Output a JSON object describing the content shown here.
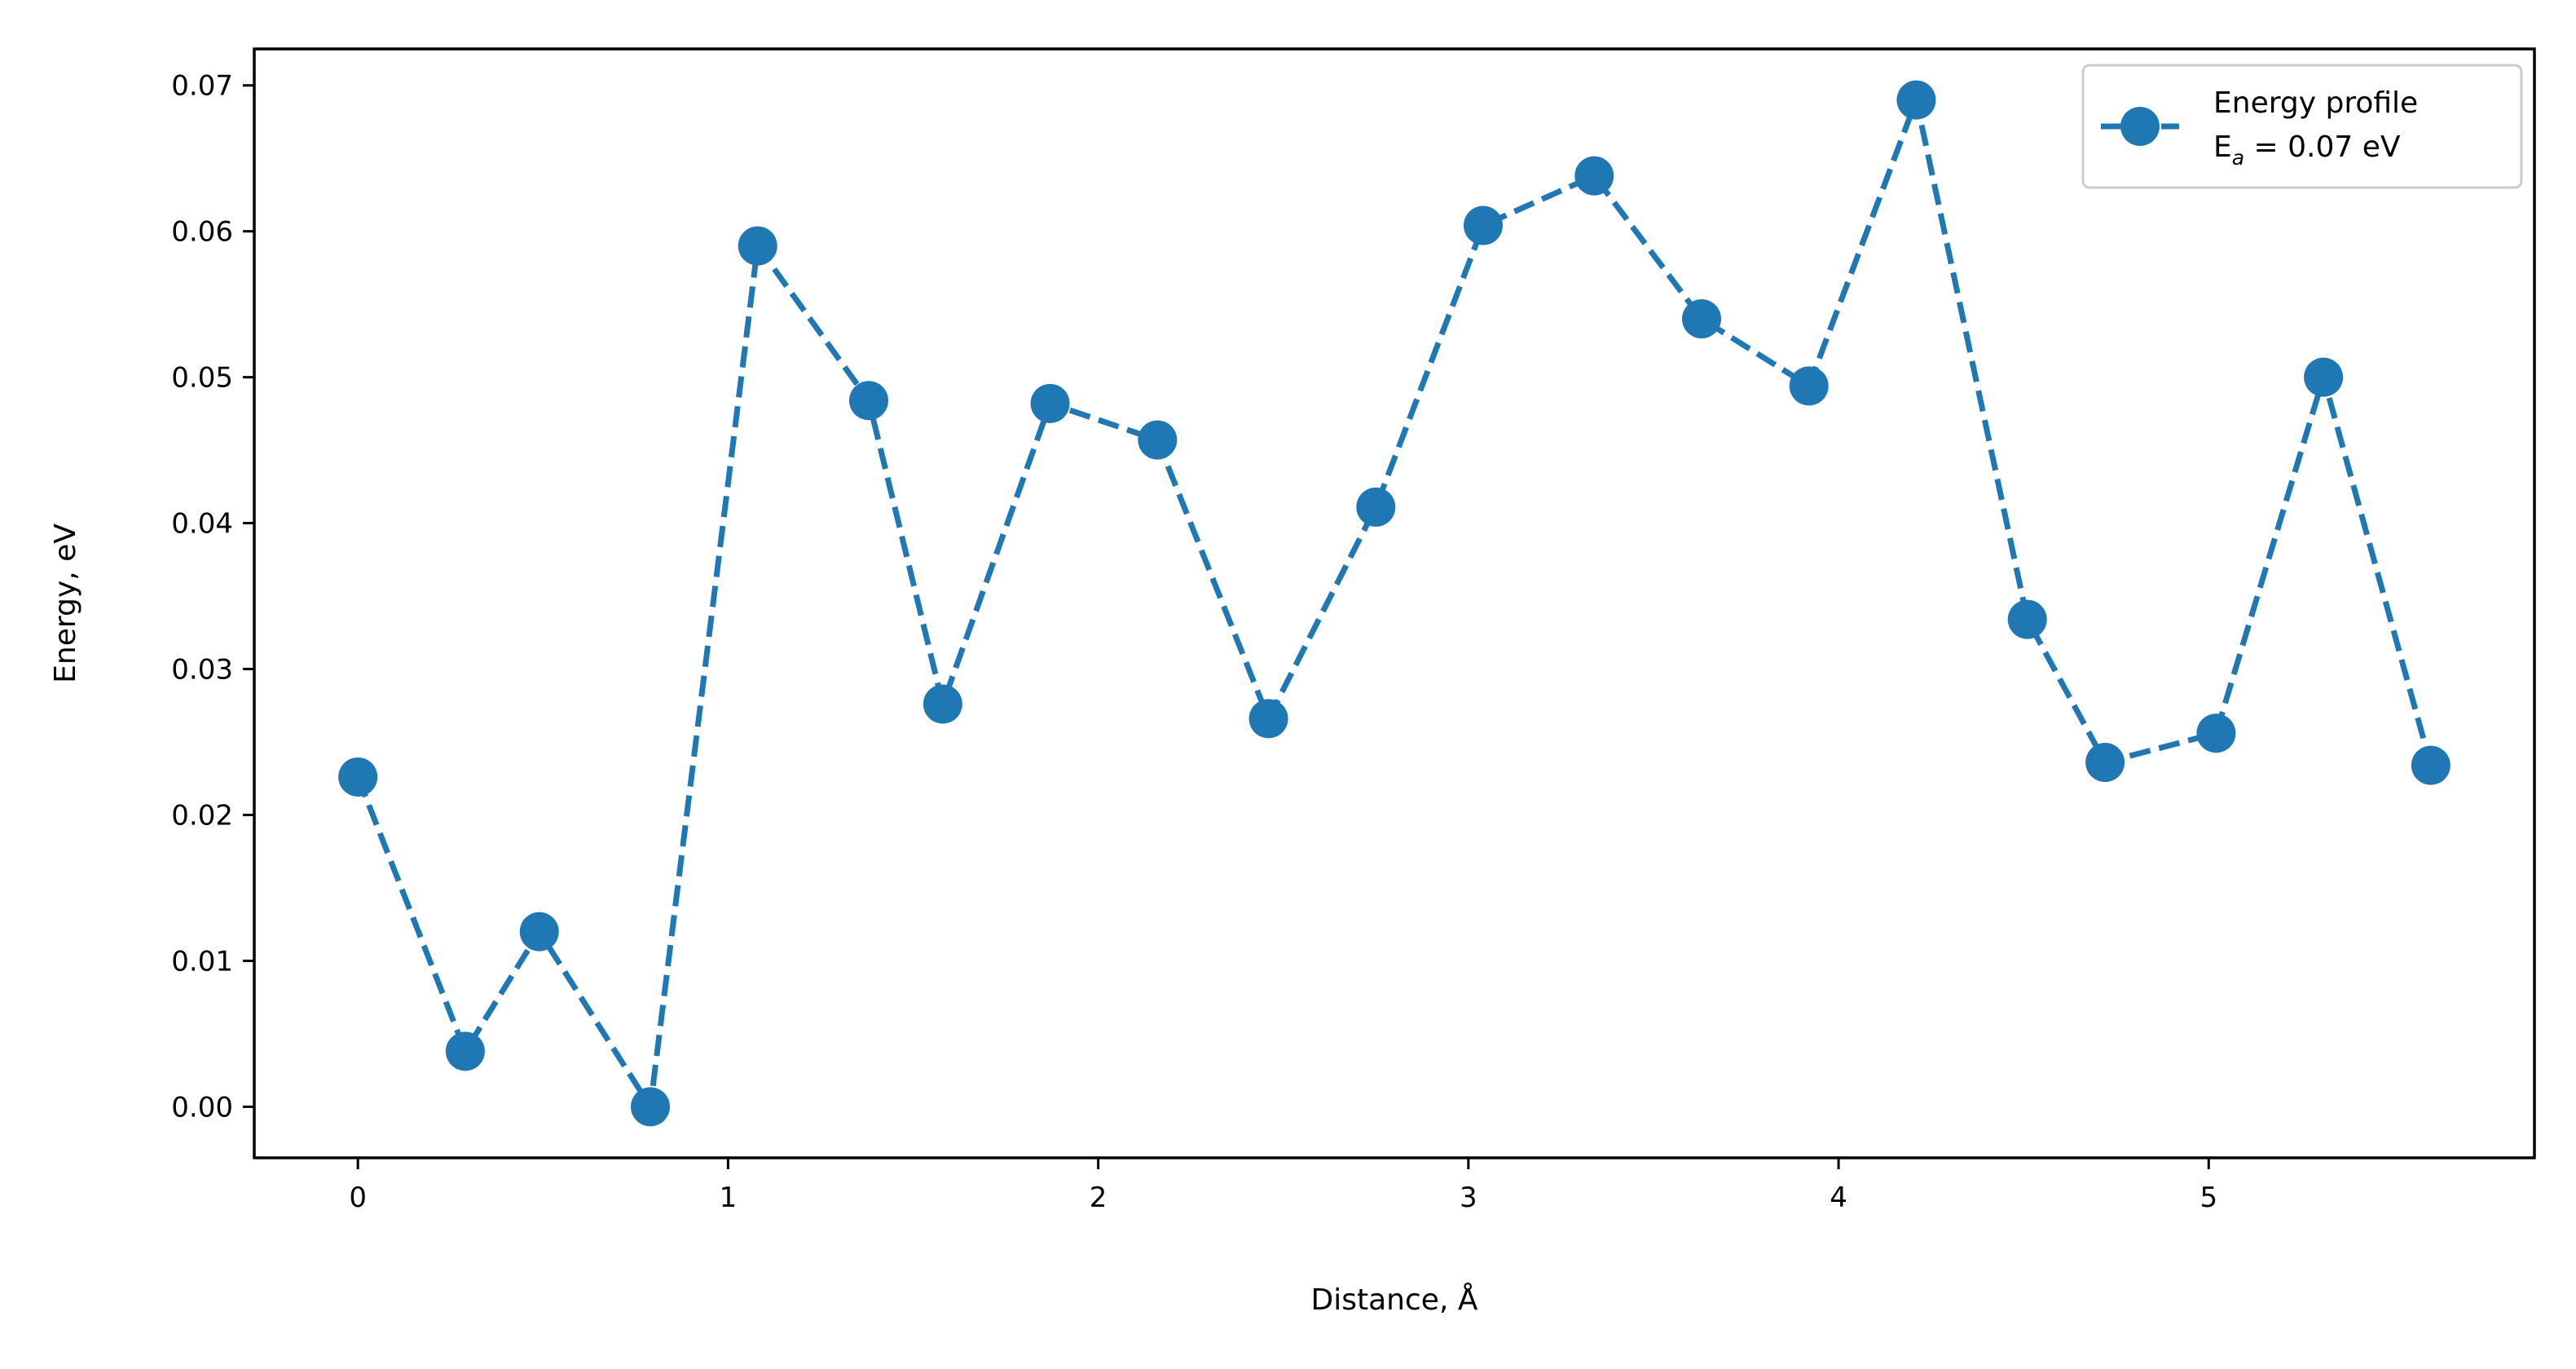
{
  "chart_data": {
    "type": "line",
    "title": "",
    "xlabel": "Distance, Å",
    "ylabel": "Energy, eV",
    "xlim": [
      -0.28,
      5.88
    ],
    "ylim": [
      -0.0035,
      0.0725
    ],
    "x_ticks": [
      0,
      1,
      2,
      3,
      4,
      5
    ],
    "y_ticks": [
      0.0,
      0.01,
      0.02,
      0.03,
      0.04,
      0.05,
      0.06,
      0.07
    ],
    "x_tick_labels": [
      "0",
      "1",
      "2",
      "3",
      "4",
      "5"
    ],
    "y_tick_labels": [
      "0.00",
      "0.01",
      "0.02",
      "0.03",
      "0.04",
      "0.05",
      "0.06",
      "0.07"
    ],
    "grid": false,
    "legend_position": "top-right",
    "series": [
      {
        "name": "Energy profile",
        "name_line2_prefix": "E",
        "name_line2_subscript": "a",
        "name_line2_suffix": " = 0.07 eV",
        "color": "#1f77b4",
        "line_style": "dashed",
        "marker": "circle",
        "x": [
          0.0,
          0.29,
          0.49,
          0.79,
          1.08,
          1.38,
          1.58,
          1.87,
          2.16,
          2.46,
          2.75,
          3.04,
          3.34,
          3.63,
          3.92,
          4.21,
          4.51,
          4.72,
          5.02,
          5.31,
          5.6
        ],
        "y": [
          0.0226,
          0.0038,
          0.012,
          0.0,
          0.059,
          0.0484,
          0.0276,
          0.0482,
          0.0457,
          0.0266,
          0.0411,
          0.0604,
          0.0638,
          0.054,
          0.0494,
          0.069,
          0.0334,
          0.0236,
          0.0256,
          0.05,
          0.0234
        ]
      }
    ]
  }
}
